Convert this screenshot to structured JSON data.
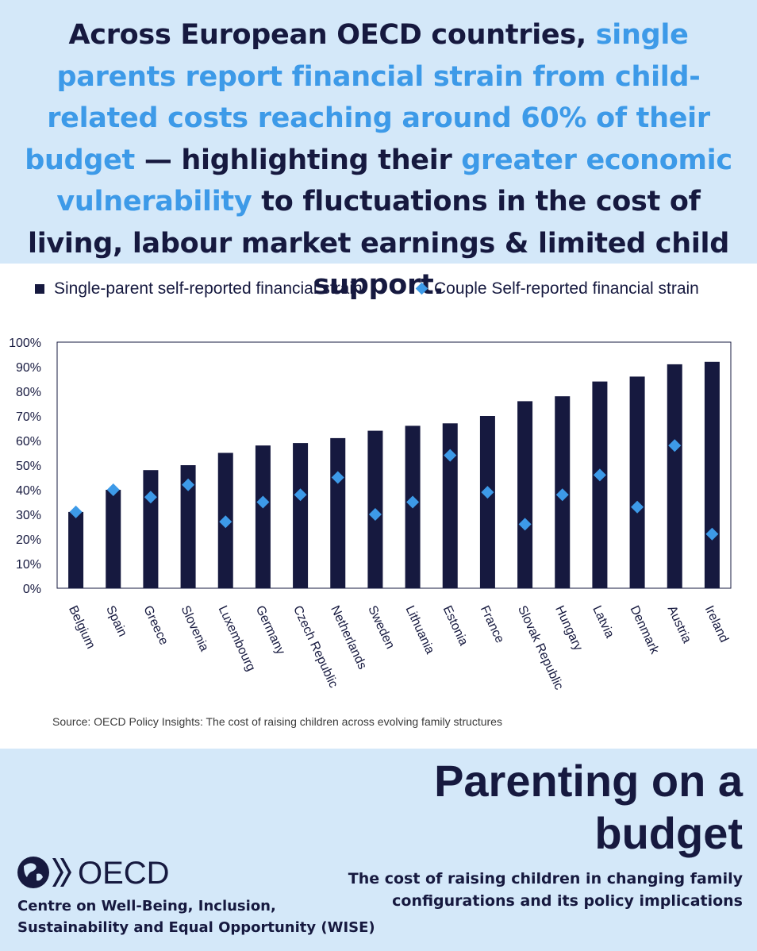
{
  "headline": {
    "part1": "Across European OECD countries, ",
    "highlight1": "single parents report financial strain from child-related costs reaching around 60% of their budget",
    "part2": " — highlighting their ",
    "highlight2": "greater economic vulnerability",
    "part3": " to fluctuations in the cost of living, labour market earnings & limited child support."
  },
  "colors": {
    "single_parent": "#16193f",
    "couple": "#3d9ae8",
    "panel_background": "#d4e8f9",
    "highlight_text": "#3d9ae8"
  },
  "chart_data": {
    "type": "bar",
    "categories": [
      "Belgium",
      "Spain",
      "Greece",
      "Slovenia",
      "Luxembourg",
      "Germany",
      "Czech Republic",
      "Netherlands",
      "Sweden",
      "Lithuania",
      "Estonia",
      "France",
      "Slovak Republic",
      "Hungary",
      "Latvia",
      "Denmark",
      "Austria",
      "Ireland"
    ],
    "series": [
      {
        "name": "Single-parent self-reported financial strain",
        "type": "bar",
        "values": [
          31,
          40,
          48,
          50,
          55,
          58,
          59,
          61,
          64,
          66,
          67,
          70,
          76,
          78,
          84,
          86,
          91,
          92
        ]
      },
      {
        "name": "Couple Self-reported financial strain",
        "type": "scatter",
        "marker": "diamond",
        "values": [
          31,
          40,
          37,
          42,
          27,
          35,
          38,
          45,
          30,
          35,
          54,
          39,
          26,
          38,
          46,
          33,
          58,
          22
        ]
      }
    ],
    "ylim": [
      0,
      100
    ],
    "yticks": [
      "0%",
      "10%",
      "20%",
      "30%",
      "40%",
      "50%",
      "60%",
      "70%",
      "80%",
      "90%",
      "100%"
    ],
    "xlabel": "",
    "ylabel": "",
    "legend_position": "top",
    "grid": false
  },
  "source": "Source: OECD Policy Insights: The cost of raising children across evolving family structures",
  "footer": {
    "title": "Parenting on a budget",
    "subtitle": "The cost of raising children in changing family configurations and its policy implications",
    "logo_text": "OECD",
    "logo_icon": "oecd-globe-icon",
    "centre": "Centre on Well-Being, Inclusion, Sustainability and Equal Opportunity (WISE)"
  }
}
